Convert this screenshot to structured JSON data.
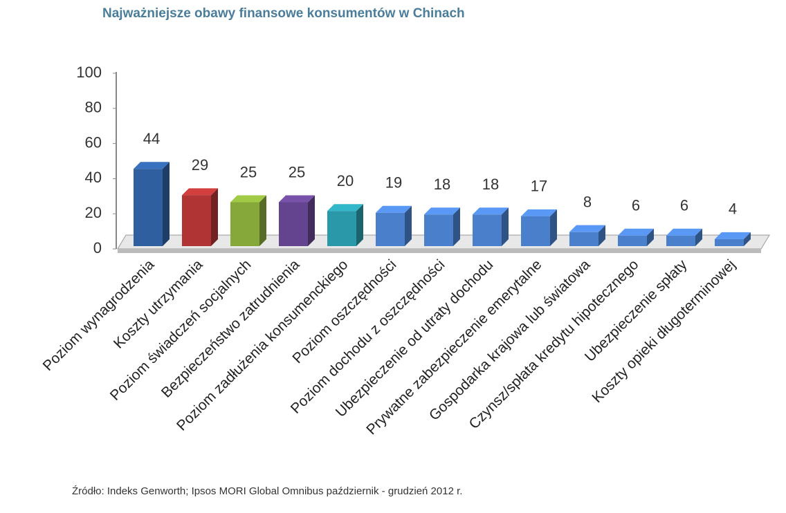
{
  "chart_data": {
    "type": "bar3d",
    "title": "Najważniejsze obawy finansowe konsumentów w Chinach",
    "source": "Źródło: Indeks Genworth; Ipsos MORI Global Omnibus październik - grudzień 2012 r.",
    "categories": [
      "Poziom wynagrodzenia",
      "Koszty utrzymania",
      "Poziom świadczeń socjalnych",
      "Bezpieczeństwo zatrudnienia",
      "Poziom zadłużenia konsumenckiego",
      "Poziom oszczędności",
      "Poziom dochodu z oszczędności",
      "Ubezpieczenie od utraty dochodu",
      "Prywatne zabezpieczenie emerytalne",
      "Gospodarka krajowa lub światowa",
      "Czynsz/spłata kredytu hipotecznego",
      "Ubezpieczenie spłaty",
      "Koszty opieki długoterminowej"
    ],
    "values": [
      44,
      29,
      25,
      25,
      20,
      19,
      18,
      18,
      17,
      8,
      6,
      6,
      4
    ],
    "colors": [
      "#2f5f9e",
      "#b03434",
      "#86a83a",
      "#64448e",
      "#2a98a8",
      "#4a7fcc",
      "#4a7fcc",
      "#4a7fcc",
      "#4a7fcc",
      "#4a7fcc",
      "#4a7fcc",
      "#4a7fcc",
      "#4a7fcc"
    ],
    "ylim": [
      0,
      100
    ],
    "yticks": [
      0,
      20,
      40,
      60,
      80,
      100
    ]
  }
}
